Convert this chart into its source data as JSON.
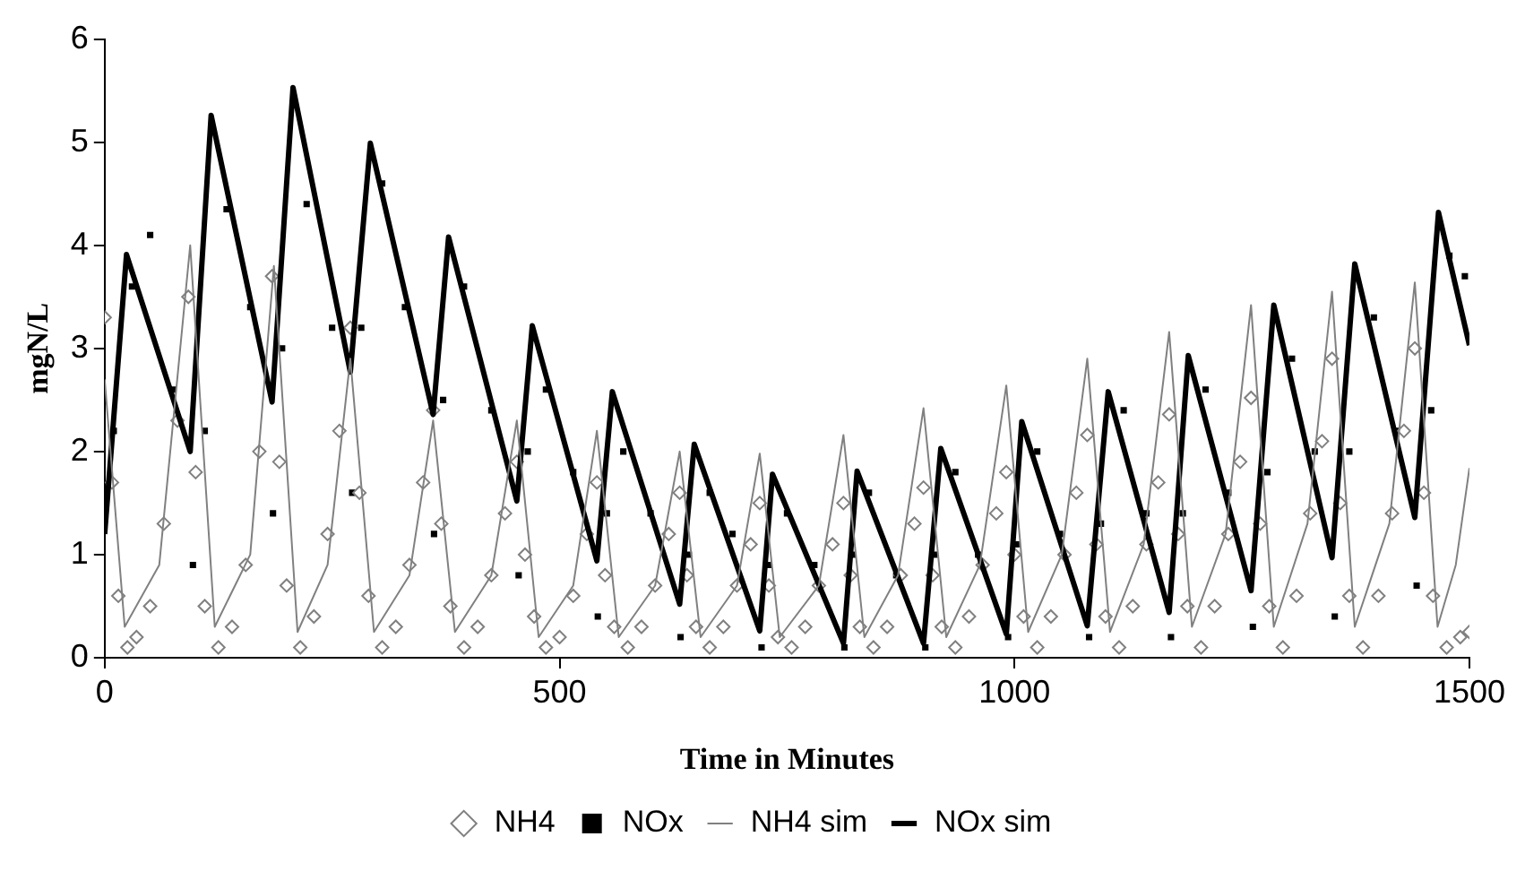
{
  "chart_data": {
    "type": "scatter",
    "xlabel": "Time in Minutes",
    "ylabel": "mgN/L",
    "xlim": [
      0,
      1500
    ],
    "xticks": [
      0,
      500,
      1000,
      1500
    ],
    "ylim": [
      0,
      6
    ],
    "yticks": [
      0,
      1,
      2,
      3,
      4,
      5,
      6
    ],
    "grid": false,
    "legend": "bottom",
    "series": [
      {
        "name": "NH4",
        "type": "scatter",
        "marker": "diamond",
        "color": "#808080",
        "x": [
          0,
          8,
          15,
          25,
          35,
          50,
          65,
          80,
          92,
          100,
          110,
          125,
          140,
          155,
          170,
          184,
          192,
          200,
          215,
          230,
          245,
          258,
          270,
          280,
          290,
          305,
          320,
          335,
          350,
          361,
          370,
          380,
          395,
          410,
          425,
          440,
          453,
          462,
          472,
          485,
          500,
          515,
          530,
          541,
          550,
          560,
          575,
          590,
          605,
          620,
          632,
          640,
          650,
          665,
          680,
          695,
          710,
          720,
          730,
          740,
          755,
          770,
          785,
          800,
          812,
          820,
          830,
          845,
          860,
          875,
          890,
          900,
          910,
          920,
          935,
          950,
          965,
          980,
          991,
          1000,
          1010,
          1025,
          1040,
          1055,
          1068,
          1080,
          1090,
          1100,
          1115,
          1130,
          1145,
          1158,
          1170,
          1180,
          1190,
          1205,
          1220,
          1235,
          1248,
          1260,
          1270,
          1280,
          1295,
          1310,
          1325,
          1338,
          1349,
          1358,
          1368,
          1383,
          1400,
          1415,
          1428,
          1440,
          1450,
          1460,
          1475,
          1490,
          1500
        ],
        "values": [
          3.3,
          1.7,
          0.6,
          0.1,
          0.2,
          0.5,
          1.3,
          2.3,
          3.5,
          1.8,
          0.5,
          0.1,
          0.3,
          0.9,
          2.0,
          3.7,
          1.9,
          0.7,
          0.1,
          0.4,
          1.2,
          2.2,
          3.2,
          1.6,
          0.6,
          0.1,
          0.3,
          0.9,
          1.7,
          2.4,
          1.3,
          0.5,
          0.1,
          0.3,
          0.8,
          1.4,
          1.9,
          1.0,
          0.4,
          0.1,
          0.2,
          0.6,
          1.2,
          1.7,
          0.8,
          0.3,
          0.1,
          0.3,
          0.7,
          1.2,
          1.6,
          0.8,
          0.3,
          0.1,
          0.3,
          0.7,
          1.1,
          1.5,
          0.7,
          0.2,
          0.1,
          0.3,
          0.7,
          1.1,
          1.5,
          0.8,
          0.3,
          0.1,
          0.3,
          0.8,
          1.3,
          1.65,
          0.8,
          0.3,
          0.1,
          0.4,
          0.9,
          1.4,
          1.8,
          1.0,
          0.4,
          0.1,
          0.4,
          1.0,
          1.6,
          2.16,
          1.1,
          0.4,
          0.1,
          0.5,
          1.1,
          1.7,
          2.36,
          1.2,
          0.5,
          0.1,
          0.5,
          1.2,
          1.9,
          2.52,
          1.3,
          0.5,
          0.1,
          0.6,
          1.4,
          2.1,
          2.9,
          1.5,
          0.6,
          0.1,
          0.6,
          1.4,
          2.2,
          3.0,
          1.6,
          0.6,
          0.1,
          0.2,
          0.25
        ]
      },
      {
        "name": "NOx",
        "marker": "square",
        "color": "#000000",
        "x": [
          10,
          30,
          50,
          75,
          97,
          110,
          134,
          160,
          185,
          195,
          222,
          250,
          272,
          282,
          305,
          330,
          362,
          372,
          395,
          425,
          455,
          465,
          485,
          515,
          542,
          552,
          570,
          600,
          633,
          642,
          665,
          690,
          722,
          730,
          750,
          780,
          813,
          822,
          840,
          870,
          902,
          912,
          935,
          960,
          993,
          1002,
          1025,
          1050,
          1082,
          1095,
          1120,
          1145,
          1172,
          1185,
          1210,
          1235,
          1262,
          1278,
          1305,
          1330,
          1352,
          1368,
          1395,
          1420,
          1442,
          1458,
          1478,
          1495
        ],
        "values": [
          2.2,
          3.6,
          4.1,
          2.6,
          0.9,
          2.2,
          4.35,
          3.4,
          1.4,
          3.0,
          4.4,
          3.2,
          1.6,
          3.2,
          4.6,
          3.4,
          1.2,
          2.5,
          3.6,
          2.4,
          0.8,
          2.0,
          2.6,
          1.8,
          0.4,
          1.4,
          2.0,
          1.4,
          0.2,
          1.0,
          1.6,
          1.2,
          0.1,
          0.9,
          1.4,
          0.9,
          0.1,
          1.0,
          1.6,
          0.8,
          0.1,
          1.0,
          1.8,
          1.0,
          0.2,
          1.1,
          2.0,
          1.2,
          0.2,
          1.3,
          2.4,
          1.4,
          0.2,
          1.4,
          2.6,
          1.6,
          0.3,
          1.8,
          2.9,
          2.0,
          0.4,
          2.0,
          3.3,
          2.2,
          0.7,
          2.4,
          3.9,
          3.7
        ]
      },
      {
        "name": "NH4 sim",
        "type": "line",
        "marker": "none",
        "color": "#808080",
        "x": [
          0,
          22,
          60,
          94,
          121,
          160,
          186,
          212,
          245,
          270,
          296,
          335,
          361,
          385,
          425,
          453,
          477,
          515,
          541,
          565,
          605,
          632,
          655,
          695,
          720,
          742,
          785,
          812,
          835,
          872,
          900,
          925,
          962,
          991,
          1015,
          1052,
          1080,
          1105,
          1142,
          1170,
          1195,
          1232,
          1260,
          1285,
          1322,
          1349,
          1374,
          1412,
          1440,
          1465,
          1485,
          1500
        ],
        "values": [
          2.7,
          0.3,
          0.9,
          4.0,
          0.3,
          1.0,
          3.8,
          0.25,
          0.9,
          2.9,
          0.25,
          0.8,
          2.3,
          0.25,
          0.8,
          2.3,
          0.2,
          0.7,
          2.2,
          0.2,
          0.7,
          2.0,
          0.2,
          0.7,
          1.98,
          0.2,
          0.7,
          2.16,
          0.2,
          0.8,
          2.42,
          0.2,
          0.9,
          2.64,
          0.25,
          1.0,
          2.9,
          0.25,
          1.1,
          3.16,
          0.3,
          1.2,
          3.42,
          0.3,
          1.3,
          3.55,
          0.3,
          1.3,
          3.64,
          0.3,
          0.9,
          1.84
        ]
      },
      {
        "name": "NOx sim",
        "type": "line",
        "marker": "none",
        "color": "#000000",
        "x": [
          0,
          24,
          94,
          117,
          184,
          207,
          270,
          292,
          361,
          378,
          453,
          470,
          541,
          558,
          632,
          648,
          720,
          734,
          812,
          827,
          900,
          919,
          991,
          1008,
          1080,
          1103,
          1170,
          1191,
          1260,
          1285,
          1349,
          1374,
          1440,
          1466,
          1500
        ],
        "values": [
          1.2,
          3.91,
          2.0,
          5.26,
          2.48,
          5.53,
          2.77,
          4.99,
          2.36,
          4.08,
          1.52,
          3.22,
          0.94,
          2.58,
          0.52,
          2.07,
          0.26,
          1.78,
          0.14,
          1.81,
          0.14,
          2.03,
          0.23,
          2.29,
          0.31,
          2.58,
          0.44,
          2.93,
          0.65,
          3.42,
          0.97,
          3.82,
          1.36,
          4.32,
          3.03
        ]
      }
    ]
  }
}
